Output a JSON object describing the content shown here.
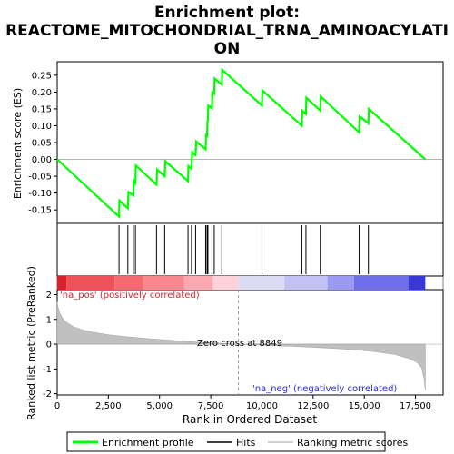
{
  "chart_data": {
    "type": "line",
    "title_lines": [
      "Enrichment plot:",
      "REACTOME_MITOCHONDRIAL_TRNA_AMINOACYLATI",
      "ON"
    ],
    "es_panel": {
      "ylabel": "Enrichment score (ES)",
      "ylim": [
        -0.19,
        0.29
      ],
      "yticks": [
        -0.15,
        -0.1,
        -0.05,
        0.0,
        0.05,
        0.1,
        0.15,
        0.2,
        0.25
      ],
      "ytick_labels": [
        "-0.15",
        "-0.10",
        "-0.05",
        "0.00",
        "0.05",
        "0.10",
        "0.15",
        "0.20",
        "0.25"
      ],
      "line_color": "#00ff00",
      "points": [
        [
          0,
          0.0
        ],
        [
          3020,
          -0.17
        ],
        [
          3040,
          -0.122
        ],
        [
          3450,
          -0.145
        ],
        [
          3480,
          -0.097
        ],
        [
          3720,
          -0.107
        ],
        [
          3740,
          -0.063
        ],
        [
          3820,
          -0.07
        ],
        [
          3840,
          -0.018
        ],
        [
          4850,
          -0.075
        ],
        [
          4880,
          -0.03
        ],
        [
          5250,
          -0.05
        ],
        [
          5280,
          -0.005
        ],
        [
          6390,
          -0.065
        ],
        [
          6410,
          -0.02
        ],
        [
          6560,
          -0.027
        ],
        [
          6590,
          0.022
        ],
        [
          6760,
          0.013
        ],
        [
          6790,
          0.053
        ],
        [
          7250,
          0.03
        ],
        [
          7270,
          0.072
        ],
        [
          7320,
          0.07
        ],
        [
          7340,
          0.115
        ],
        [
          7360,
          0.112
        ],
        [
          7380,
          0.16
        ],
        [
          7560,
          0.152
        ],
        [
          7580,
          0.2
        ],
        [
          7670,
          0.195
        ],
        [
          7690,
          0.24
        ],
        [
          8040,
          0.222
        ],
        [
          8060,
          0.266
        ],
        [
          10000,
          0.16
        ],
        [
          10020,
          0.205
        ],
        [
          11950,
          0.1
        ],
        [
          11970,
          0.145
        ],
        [
          12150,
          0.135
        ],
        [
          12170,
          0.183
        ],
        [
          12850,
          0.145
        ],
        [
          12870,
          0.187
        ],
        [
          14750,
          0.08
        ],
        [
          14770,
          0.128
        ],
        [
          15200,
          0.107
        ],
        [
          15220,
          0.15
        ],
        [
          17980,
          0.0
        ]
      ]
    },
    "hits": {
      "legend_name": "Hits",
      "positions": [
        3020,
        3450,
        3720,
        3820,
        4850,
        5250,
        6390,
        6560,
        6760,
        7250,
        7320,
        7360,
        7560,
        7670,
        8040,
        10000,
        11950,
        12150,
        12850,
        14750,
        15200
      ]
    },
    "color_bar": {
      "pos_label": "'na_pos' (positively correlated)",
      "neg_label": "'na_neg' (negatively correlated)",
      "segments": [
        {
          "from": 0,
          "to": 450,
          "color": "#dd1f2a"
        },
        {
          "from": 450,
          "to": 2800,
          "color": "#f0505a"
        },
        {
          "from": 2800,
          "to": 4200,
          "color": "#f56a72"
        },
        {
          "from": 4200,
          "to": 6200,
          "color": "#f98890"
        },
        {
          "from": 6200,
          "to": 7600,
          "color": "#fca8b0"
        },
        {
          "from": 7600,
          "to": 8849,
          "color": "#fdd2da"
        },
        {
          "from": 8849,
          "to": 11100,
          "color": "#dcdcf5"
        },
        {
          "from": 11100,
          "to": 13200,
          "color": "#c2c2f2"
        },
        {
          "from": 13200,
          "to": 14500,
          "color": "#9a9af0"
        },
        {
          "from": 14500,
          "to": 17150,
          "color": "#6e6ee8"
        },
        {
          "from": 17150,
          "to": 17980,
          "color": "#3838d8"
        }
      ]
    },
    "metric_panel": {
      "ylabel": "Ranked list metric (PreRanked)",
      "ylim": [
        -2.05,
        2.2
      ],
      "yticks": [
        -2,
        -1,
        0,
        1,
        2
      ],
      "ytick_labels": [
        "-2",
        "-1",
        "0",
        "1",
        "2"
      ],
      "zero_cross_label": "Zero cross at 8849",
      "zero_cross": 8849,
      "fill_color": "#c0c0c0",
      "points": [
        [
          0,
          1.7
        ],
        [
          50,
          1.45
        ],
        [
          150,
          1.2
        ],
        [
          300,
          1.0
        ],
        [
          500,
          0.85
        ],
        [
          800,
          0.7
        ],
        [
          1200,
          0.58
        ],
        [
          1800,
          0.47
        ],
        [
          2500,
          0.38
        ],
        [
          3500,
          0.29
        ],
        [
          4500,
          0.22
        ],
        [
          5500,
          0.16
        ],
        [
          6500,
          0.1
        ],
        [
          7500,
          0.05
        ],
        [
          8849,
          0.0
        ],
        [
          10000,
          -0.04
        ],
        [
          11500,
          -0.09
        ],
        [
          13000,
          -0.15
        ],
        [
          14500,
          -0.22
        ],
        [
          15500,
          -0.3
        ],
        [
          16500,
          -0.42
        ],
        [
          17200,
          -0.58
        ],
        [
          17600,
          -0.75
        ],
        [
          17800,
          -0.95
        ],
        [
          17900,
          -1.3
        ],
        [
          17980,
          -1.85
        ]
      ]
    },
    "xaxis": {
      "label": "Rank in Ordered Dataset",
      "xlim": [
        0,
        18850
      ],
      "ticks": [
        0,
        2500,
        5000,
        7500,
        10000,
        12500,
        15000,
        17500
      ],
      "tick_labels": [
        "0",
        "2,500",
        "5,000",
        "7,500",
        "10,000",
        "12,500",
        "15,000",
        "17,500"
      ]
    },
    "legend": {
      "placement": "bottom",
      "items": [
        {
          "label": "Enrichment profile",
          "color": "#00ff00"
        },
        {
          "label": "Hits",
          "color": "#000000"
        },
        {
          "label": "Ranking metric scores",
          "color": "#c0c0c0"
        }
      ]
    }
  }
}
